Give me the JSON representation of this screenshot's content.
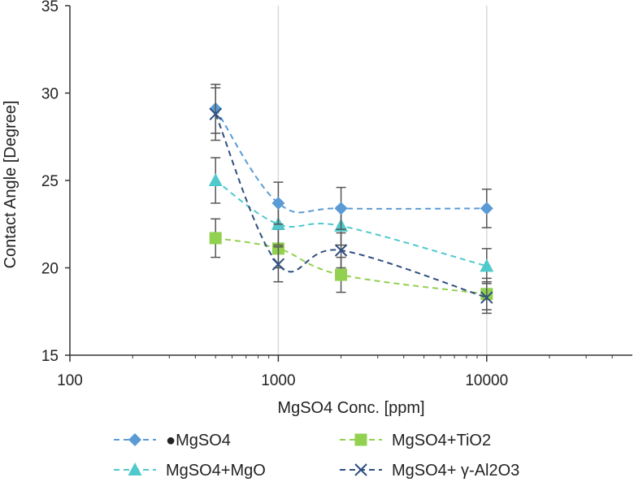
{
  "chart_data": {
    "type": "line",
    "xlabel": "MgSO4 Conc. [ppm]",
    "ylabel": "Contact Angle [Degree]",
    "x_scale": "log",
    "xlim": [
      100,
      50000
    ],
    "ylim": [
      15,
      35
    ],
    "x_ticks": [
      100,
      1000,
      10000
    ],
    "x_tick_labels": [
      "100",
      "1000",
      "10000"
    ],
    "y_ticks": [
      15,
      20,
      25,
      30,
      35
    ],
    "y_tick_labels": [
      "15",
      "20",
      "25",
      "30",
      "35"
    ],
    "grid": "vertical",
    "legend_position": "bottom",
    "x": [
      500,
      1000,
      2000,
      10000
    ],
    "series": [
      {
        "name": "●MgSO4",
        "values": [
          29.1,
          23.7,
          23.4,
          23.4
        ],
        "error": [
          1.4,
          1.2,
          1.2,
          1.1
        ],
        "color": "#5b9bd5",
        "marker": "diamond"
      },
      {
        "name": "MgSO4+TiO2",
        "values": [
          21.7,
          21.1,
          19.6,
          18.5
        ],
        "error": [
          1.1,
          1.1,
          1.0,
          0.9
        ],
        "color": "#92d050",
        "marker": "square"
      },
      {
        "name": "MgSO4+MgO",
        "values": [
          25.0,
          22.5,
          22.4,
          20.1
        ],
        "error": [
          1.3,
          1.2,
          1.1,
          1.0
        ],
        "color": "#4fc9cc",
        "marker": "triangle"
      },
      {
        "name": "MgSO4+ γ-Al2O3",
        "values": [
          28.8,
          20.2,
          21.0,
          18.3
        ],
        "error": [
          1.5,
          1.0,
          1.0,
          0.9
        ],
        "color": "#2f4f80",
        "marker": "x"
      }
    ]
  }
}
